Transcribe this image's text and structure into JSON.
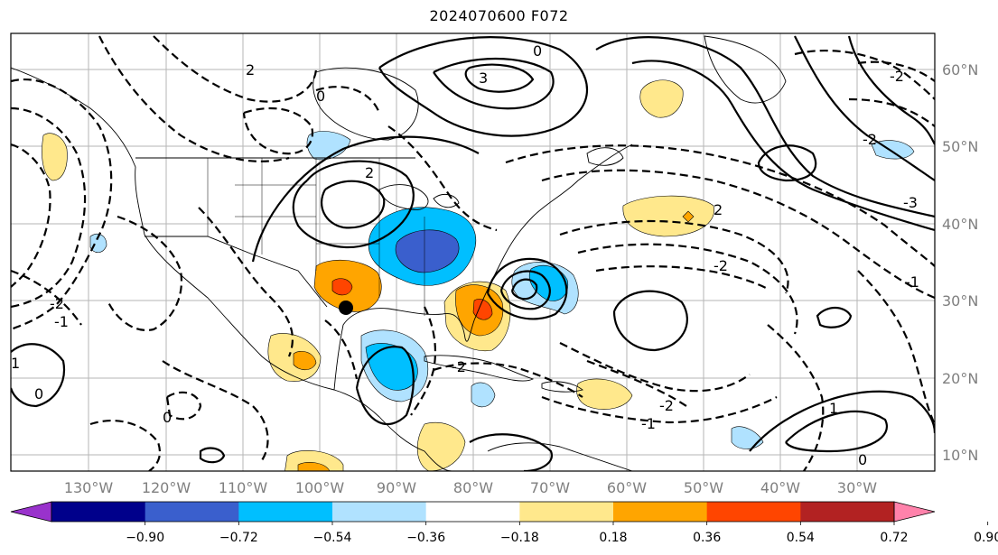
{
  "title": "2024070600 F072",
  "lon_labels": [
    "130°W",
    "120°W",
    "110°W",
    "100°W",
    "90°W",
    "80°W",
    "70°W",
    "60°W",
    "50°W",
    "40°W",
    "30°W"
  ],
  "lat_labels": [
    "60°N",
    "50°N",
    "40°N",
    "30°N",
    "20°N",
    "10°N"
  ],
  "colorbar": {
    "ticks": [
      "−0.90",
      "−0.72",
      "−0.54",
      "−0.36",
      "−0.18",
      "0.18",
      "0.36",
      "0.54",
      "0.72",
      "0.90"
    ],
    "colors": [
      "#9932cc",
      "#00008b",
      "#3a5fcd",
      "#00bfff",
      "#b0e2ff",
      "#ffffff",
      "#ffe88c",
      "#ffa500",
      "#ff4500",
      "#b22222",
      "#ff82ab"
    ]
  },
  "contour_labels": [
    {
      "text": "2"
    },
    {
      "text": "-2"
    },
    {
      "text": "0"
    },
    {
      "text": "1"
    },
    {
      "text": "-1"
    },
    {
      "text": "2"
    },
    {
      "text": "0"
    },
    {
      "text": "-2"
    },
    {
      "text": "-2"
    },
    {
      "text": "2"
    },
    {
      "text": "-2"
    },
    {
      "text": "-1"
    },
    {
      "text": "0"
    },
    {
      "text": "1"
    },
    {
      "text": "-1"
    },
    {
      "text": "0"
    },
    {
      "text": "-2"
    },
    {
      "text": "-3"
    },
    {
      "text": "3"
    },
    {
      "text": "0"
    },
    {
      "text": "-2"
    }
  ]
}
